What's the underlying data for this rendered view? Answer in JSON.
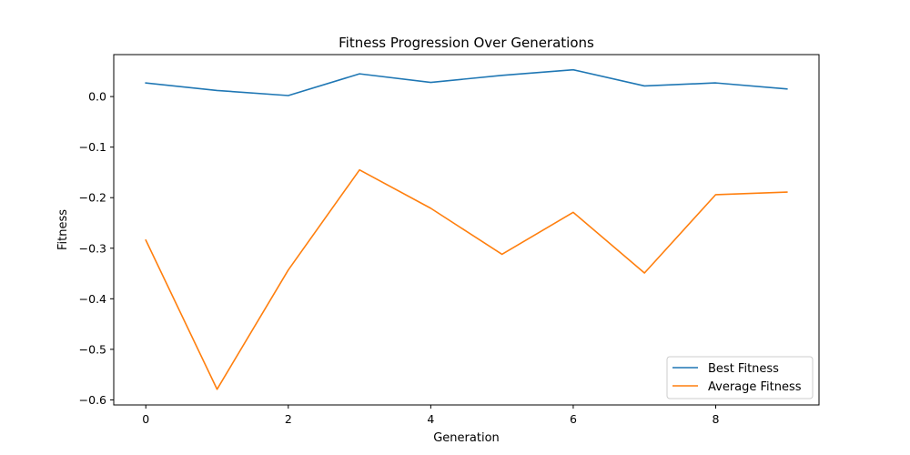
{
  "chart_data": {
    "type": "line",
    "title": "Fitness Progression Over Generations",
    "xlabel": "Generation",
    "ylabel": "Fitness",
    "xlim": [
      -0.45,
      9.45
    ],
    "ylim": [
      -0.61,
      0.083
    ],
    "xticks": [
      0,
      2,
      4,
      6,
      8
    ],
    "yticks": [
      0.0,
      -0.1,
      -0.2,
      -0.3,
      -0.4,
      -0.5,
      -0.6
    ],
    "ytick_labels": [
      "0.0",
      "−0.1",
      "−0.2",
      "−0.3",
      "−0.4",
      "−0.5",
      "−0.6"
    ],
    "grid": false,
    "legend_position": "bottom-right",
    "x": [
      0,
      1,
      2,
      3,
      4,
      5,
      6,
      7,
      8,
      9
    ],
    "series": [
      {
        "name": "Best Fitness",
        "color": "#1f77b4",
        "values": [
          0.027,
          0.012,
          0.002,
          0.045,
          0.028,
          0.042,
          0.053,
          0.021,
          0.027,
          0.015
        ]
      },
      {
        "name": "Average Fitness",
        "color": "#ff7f0e",
        "values": [
          -0.284,
          -0.579,
          -0.343,
          -0.145,
          -0.221,
          -0.312,
          -0.229,
          -0.349,
          -0.194,
          -0.189
        ]
      }
    ]
  }
}
